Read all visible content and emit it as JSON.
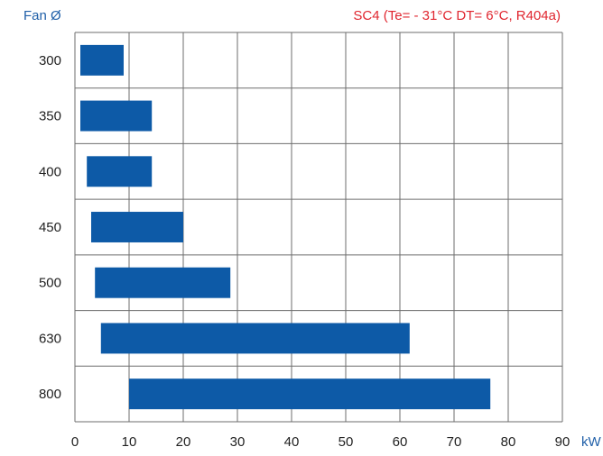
{
  "chart_data": {
    "type": "bar",
    "orientation": "horizontal-range",
    "title": "SC4 (Te= - 31°C DT= 6°C, R404a)",
    "ylabel": "Fan Ø",
    "xlabel": "",
    "x_unit": "kW",
    "xlim": [
      0,
      90
    ],
    "x_ticks": [
      0,
      10,
      20,
      30,
      40,
      50,
      60,
      70,
      80,
      90
    ],
    "grid": true,
    "categories": [
      "300",
      "350",
      "400",
      "450",
      "500",
      "630",
      "800"
    ],
    "ranges": [
      [
        1,
        9
      ],
      [
        1,
        14.2
      ],
      [
        2.2,
        14.2
      ],
      [
        3,
        20
      ],
      [
        3.7,
        28.7
      ],
      [
        4.8,
        61.8
      ],
      [
        10,
        76.7
      ]
    ],
    "bar_color": "#0d5aa7",
    "grid_color": "#6e6e6e"
  }
}
